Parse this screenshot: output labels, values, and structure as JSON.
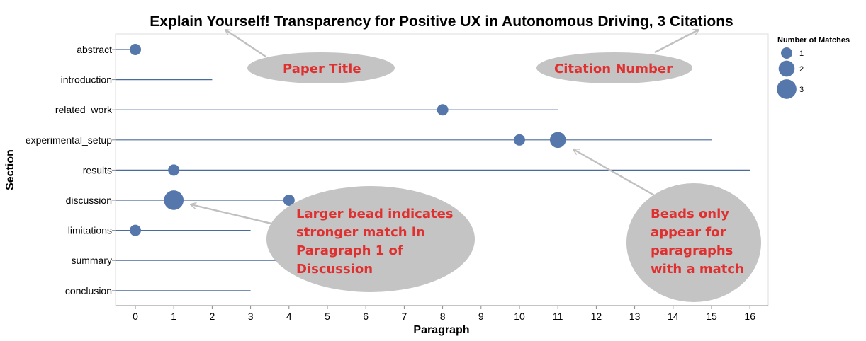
{
  "chart_data": {
    "type": "scatter",
    "title": "Explain Yourself! Transparency for Positive UX in Autonomous Driving, 3 Citations",
    "xlabel": "Paragraph",
    "ylabel": "Section",
    "xlim": [
      -0.5,
      16.5
    ],
    "x_ticks": [
      0,
      1,
      2,
      3,
      4,
      5,
      6,
      7,
      8,
      9,
      10,
      11,
      12,
      13,
      14,
      15,
      16
    ],
    "sections": [
      {
        "name": "abstract",
        "max_paragraph": 0,
        "matches": [
          {
            "paragraph": 0,
            "count": 1
          }
        ]
      },
      {
        "name": "introduction",
        "max_paragraph": 2,
        "matches": []
      },
      {
        "name": "related_work",
        "max_paragraph": 11,
        "matches": [
          {
            "paragraph": 8,
            "count": 1
          }
        ]
      },
      {
        "name": "experimental_setup",
        "max_paragraph": 15,
        "matches": [
          {
            "paragraph": 10,
            "count": 1
          },
          {
            "paragraph": 11,
            "count": 2
          }
        ]
      },
      {
        "name": "results",
        "max_paragraph": 16,
        "matches": [
          {
            "paragraph": 1,
            "count": 1
          }
        ]
      },
      {
        "name": "discussion",
        "max_paragraph": 4,
        "matches": [
          {
            "paragraph": 1,
            "count": 3
          },
          {
            "paragraph": 4,
            "count": 1
          }
        ]
      },
      {
        "name": "limitations",
        "max_paragraph": 3,
        "matches": [
          {
            "paragraph": 0,
            "count": 1
          }
        ]
      },
      {
        "name": "summary",
        "max_paragraph": 4,
        "matches": []
      },
      {
        "name": "conclusion",
        "max_paragraph": 3,
        "matches": []
      }
    ],
    "legend": {
      "title": "Number of Matches",
      "placement": "right",
      "entries": [
        {
          "label": "1",
          "value": 1
        },
        {
          "label": "2",
          "value": 2
        },
        {
          "label": "3",
          "value": 3
        }
      ]
    },
    "colors": {
      "bead": "#5677ab",
      "line": "#4a6c9c",
      "annotation_bubble": "#c4c4c4",
      "annotation_text": "#e02f2f",
      "annotation_arrow": "#c0c0c0"
    },
    "annotations": [
      {
        "id": "paper-title",
        "lines": [
          "Paper Title"
        ]
      },
      {
        "id": "citation-number",
        "lines": [
          "Citation Number"
        ]
      },
      {
        "id": "larger-bead",
        "lines": [
          "Larger bead indicates",
          "stronger match in",
          "Paragraph 1 of",
          "Discussion"
        ]
      },
      {
        "id": "beads-only",
        "lines": [
          "Beads only",
          "appear for",
          "paragraphs",
          "with a match"
        ]
      }
    ]
  }
}
